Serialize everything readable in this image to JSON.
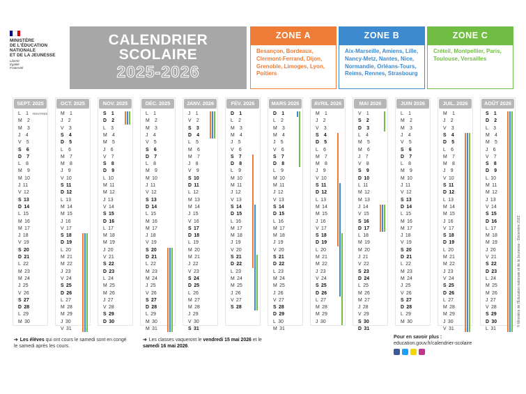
{
  "ministry": {
    "name_lines": [
      "MINISTÈRE",
      "DE L'ÉDUCATION",
      "NATIONALE",
      "ET DE LA JEUNESSE"
    ],
    "motto_lines": [
      "Liberté",
      "Égalité",
      "Fraternité"
    ],
    "flag_colors": [
      "#000091",
      "#ffffff",
      "#e1000f"
    ]
  },
  "title": {
    "line1": "CALENDRIER",
    "line2": "SCOLAIRE",
    "line3": "2025-2026",
    "bg": "#a7a7a7"
  },
  "zones": [
    {
      "name": "ZONE A",
      "color": "#ee7c37",
      "cities": "Besançon, Bordeaux, Clermont-Ferrand, Dijon, Grenoble, Limoges, Lyon, Poitiers"
    },
    {
      "name": "ZONE B",
      "color": "#3d8ad0",
      "cities": "Aix-Marseille, Amiens, Lille, Nancy-Metz, Nantes, Nice, Normandie, Orléans-Tours, Reims, Rennes, Strasbourg"
    },
    {
      "name": "ZONE C",
      "color": "#72bd44",
      "cities": "Créteil, Montpellier, Paris, Toulouse, Versailles"
    }
  ],
  "months": [
    {
      "label": "SEPT. 2025",
      "first": 0,
      "days": 30
    },
    {
      "label": "OCT. 2025",
      "first": 2,
      "days": 31
    },
    {
      "label": "NOV. 2025",
      "first": 5,
      "days": 30
    },
    {
      "label": "DÉC. 2025",
      "first": 0,
      "days": 31
    },
    {
      "label": "JANV. 2026",
      "first": 3,
      "days": 31
    },
    {
      "label": "FÉV. 2026",
      "first": 6,
      "days": 28
    },
    {
      "label": "MARS 2026",
      "first": 6,
      "days": 31
    },
    {
      "label": "AVRIL 2026",
      "first": 2,
      "days": 30
    },
    {
      "label": "MAI 2026",
      "first": 4,
      "days": 31
    },
    {
      "label": "JUIN 2026",
      "first": 0,
      "days": 30
    },
    {
      "label": "JUIL. 2026",
      "first": 2,
      "days": 31
    },
    {
      "label": "AOÛT 2026",
      "first": 5,
      "days": 31
    }
  ],
  "weekday_letters": [
    "L",
    "M",
    "M",
    "J",
    "V",
    "S",
    "D"
  ],
  "rentree_label": "RENTRÉE",
  "holidays": [
    {
      "zone": "all",
      "start": [
        1,
        18
      ],
      "end": [
        2,
        2
      ]
    },
    {
      "zone": "all",
      "start": [
        3,
        20
      ],
      "end": [
        4,
        4
      ]
    },
    {
      "zone": "A",
      "start": [
        5,
        7
      ],
      "end": [
        5,
        22
      ]
    },
    {
      "zone": "B",
      "start": [
        5,
        14
      ],
      "end": [
        6,
        1
      ]
    },
    {
      "zone": "C",
      "start": [
        5,
        21
      ],
      "end": [
        6,
        8
      ]
    },
    {
      "zone": "A",
      "start": [
        7,
        4
      ],
      "end": [
        7,
        19
      ]
    },
    {
      "zone": "B",
      "start": [
        7,
        11
      ],
      "end": [
        7,
        26
      ]
    },
    {
      "zone": "C",
      "start": [
        7,
        18
      ],
      "end": [
        8,
        3
      ]
    },
    {
      "zone": "all",
      "start": [
        8,
        14
      ],
      "end": [
        8,
        17
      ]
    },
    {
      "zone": "all",
      "start": [
        10,
        4
      ],
      "end": [
        11,
        31
      ]
    }
  ],
  "notes": {
    "saturday": {
      "bold": "Les élèves",
      "text": " qui ont cours le samedi sont en congé le samedi après les cours."
    },
    "pont": {
      "pre": "Les classes vaqueront le ",
      "bold1": "vendredi 15 mai 2026",
      "mid": " et le ",
      "bold2": "samedi 16 mai 2026",
      "post": "."
    }
  },
  "more": {
    "title": "Pour en savoir plus :",
    "url": "education.gouv.fr/calendrier-scolaire"
  },
  "social": [
    {
      "name": "facebook-icon",
      "glyph": "f",
      "color": "#3b5998"
    },
    {
      "name": "twitter-icon",
      "glyph": "t",
      "color": "#1da1f2"
    },
    {
      "name": "snapchat-icon",
      "glyph": "s",
      "color": "#f2d600"
    },
    {
      "name": "instagram-icon",
      "glyph": "i",
      "color": "#c1358f"
    }
  ],
  "copyright": "© Ministère de l'Éducation nationale et de la Jeunesse - Décembre 2022"
}
